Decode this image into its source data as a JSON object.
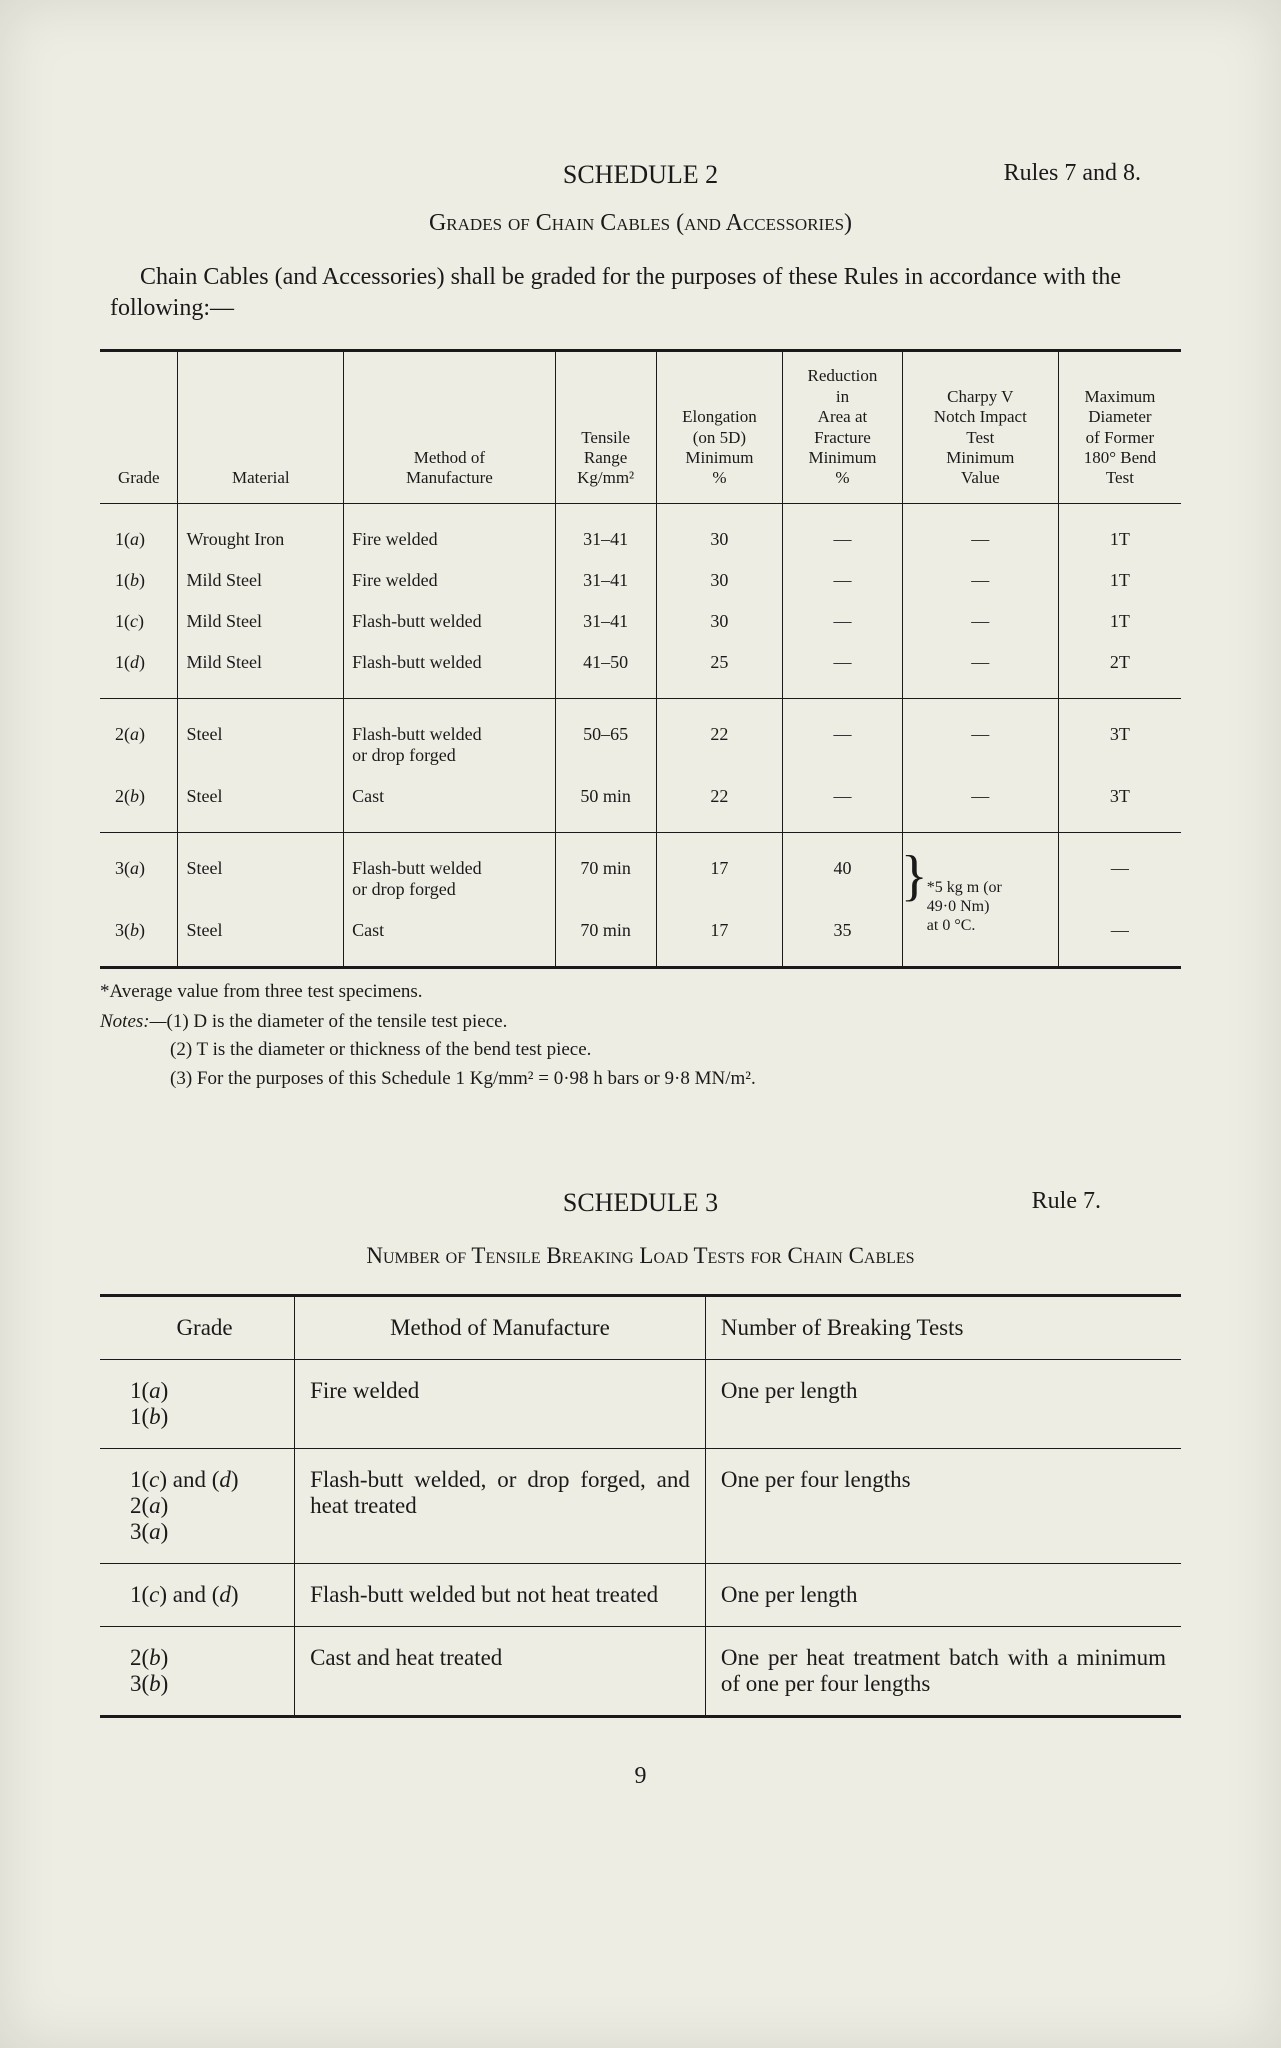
{
  "page_number": "9",
  "schedule2": {
    "rules_ref": "Rules 7 and 8.",
    "title": "SCHEDULE 2",
    "subtitle": "Grades of Chain Cables (and Accessories)",
    "intro": "Chain Cables (and Accessories) shall be graded for the purposes of these Rules in accordance with the following:—",
    "headers": {
      "grade": "Grade",
      "material": "Material",
      "method": "Method of\nManufacture",
      "tensile": "Tensile\nRange\nKg/mm²",
      "elongation": "Elongation\n(on 5D)\nMinimum\n%",
      "reduction": "Reduction\nin\nArea at\nFracture\nMinimum\n%",
      "charpy": "Charpy V\nNotch Impact\nTest\nMinimum\nValue",
      "bend": "Maximum\nDiameter\nof Former\n180° Bend\nTest"
    },
    "rows_g1": [
      {
        "grade": "1(a)",
        "material": "Wrought Iron",
        "method": "Fire welded",
        "tensile": "31–41",
        "elong": "30",
        "red": "—",
        "charpy": "—",
        "bend": "1T"
      },
      {
        "grade": "1(b)",
        "material": "Mild Steel",
        "method": "Fire welded",
        "tensile": "31–41",
        "elong": "30",
        "red": "—",
        "charpy": "—",
        "bend": "1T"
      },
      {
        "grade": "1(c)",
        "material": "Mild Steel",
        "method": "Flash-butt welded",
        "tensile": "31–41",
        "elong": "30",
        "red": "—",
        "charpy": "—",
        "bend": "1T"
      },
      {
        "grade": "1(d)",
        "material": "Mild Steel",
        "method": "Flash-butt welded",
        "tensile": "41–50",
        "elong": "25",
        "red": "—",
        "charpy": "—",
        "bend": "2T"
      }
    ],
    "rows_g2": [
      {
        "grade": "2(a)",
        "material": "Steel",
        "method": "Flash-butt welded\nor drop forged",
        "tensile": "50–65",
        "elong": "22",
        "red": "—",
        "charpy": "—",
        "bend": "3T"
      },
      {
        "grade": "2(b)",
        "material": "Steel",
        "method": "Cast",
        "tensile": "50 min",
        "elong": "22",
        "red": "—",
        "charpy": "—",
        "bend": "3T"
      }
    ],
    "rows_g3": [
      {
        "grade": "3(a)",
        "material": "Steel",
        "method": "Flash-butt welded\nor drop forged",
        "tensile": "70 min",
        "elong": "17",
        "red": "40",
        "bend": "—"
      },
      {
        "grade": "3(b)",
        "material": "Steel",
        "method": "Cast",
        "tensile": "70 min",
        "elong": "17",
        "red": "35",
        "bend": "—"
      }
    ],
    "charpy_note": "*5 kg m (or\n49·0 Nm)\nat 0 °C.",
    "footnote": "*Average value from three test specimens.",
    "notes_label": "Notes:—",
    "notes": [
      "(1) D is the diameter of the tensile test piece.",
      "(2) T is the diameter or thickness of the bend test piece.",
      "(3) For the purposes of this Schedule 1 Kg/mm² = 0·98 h bars or 9·8 MN/m²."
    ]
  },
  "schedule3": {
    "rules_ref": "Rule 7.",
    "title": "SCHEDULE 3",
    "subtitle": "Number of Tensile Breaking Load Tests for Chain Cables",
    "headers": {
      "grade": "Grade",
      "method": "Method of Manufacture",
      "number": "Number of Breaking Tests"
    },
    "rows": [
      {
        "grade": "1(a)\n1(b)",
        "method": "Fire welded",
        "number": "One per length"
      },
      {
        "grade": "1(c) and (d)\n2(a)\n3(a)",
        "method": "Flash-butt welded, or drop forged, and heat treated",
        "number": "One per four lengths"
      },
      {
        "grade": "1(c) and (d)",
        "method": "Flash-butt welded but not heat treated",
        "number": "One per length"
      },
      {
        "grade": "2(b)\n3(b)",
        "method": "Cast and heat treated",
        "number": "One per heat treatment batch with a minimum of one per four lengths"
      }
    ]
  }
}
